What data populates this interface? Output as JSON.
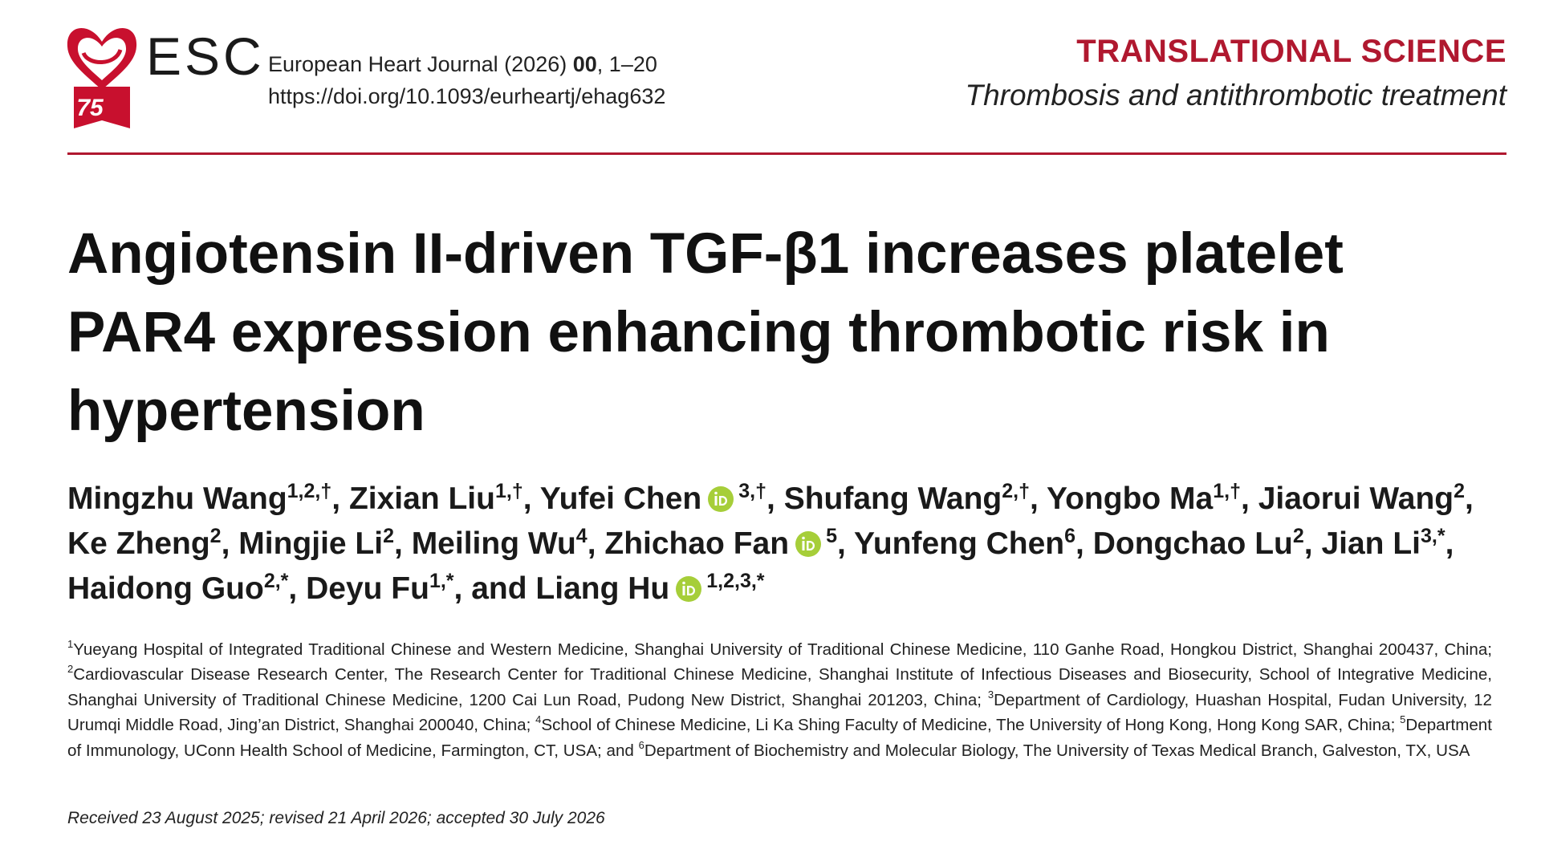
{
  "header": {
    "logo_text": "ESC",
    "logo_years": "75",
    "journal": "European Heart Journal (2026)",
    "volume": "00",
    "pages": ", 1–20",
    "doi": "https://doi.org/10.1093/eurheartj/ehag632",
    "section": "TRANSLATIONAL SCIENCE",
    "subsection": "Thrombosis and antithrombotic treatment"
  },
  "title": "Angiotensin II-driven TGF-β1 increases platelet PAR4 expression enhancing thrombotic risk in hypertension",
  "authors": [
    {
      "name": "Mingzhu Wang",
      "sup": "1,2,†",
      "sep": ","
    },
    {
      "name": "Zixian Liu",
      "sup": "1,†",
      "sep": ","
    },
    {
      "name": "Yufei Chen",
      "orcid": true,
      "sup": "3,†",
      "sep": ","
    },
    {
      "name": "Shufang Wang",
      "sup": "2,†",
      "sep": ","
    },
    {
      "name": "Yongbo Ma",
      "sup": "1,†",
      "sep": ","
    },
    {
      "name": "Jiaorui Wang",
      "sup": "2",
      "sep": ","
    },
    {
      "name": "Ke Zheng",
      "sup": "2",
      "sep": ","
    },
    {
      "name": "Mingjie Li",
      "sup": "2",
      "sep": ","
    },
    {
      "name": "Meiling Wu",
      "sup": "4",
      "sep": ","
    },
    {
      "name": "Zhichao Fan",
      "orcid": true,
      "sup": "5",
      "sep": ","
    },
    {
      "name": "Yunfeng Chen",
      "sup": "6",
      "sep": ","
    },
    {
      "name": "Dongchao Lu",
      "sup": "2",
      "sep": ","
    },
    {
      "name": "Jian Li",
      "sup": "3,*",
      "sep": ","
    },
    {
      "name": "Haidong Guo",
      "sup": "2,*",
      "sep": ","
    },
    {
      "name": "Deyu Fu",
      "sup": "1,*",
      "sep": ","
    },
    {
      "lead": "and",
      "name": "Liang Hu",
      "orcid": true,
      "sup": "1,2,3,*"
    }
  ],
  "affiliations": [
    {
      "num": "1",
      "text": "Yueyang Hospital of Integrated Traditional Chinese and Western Medicine, Shanghai University of Traditional Chinese Medicine, 110 Ganhe Road, Hongkou District, Shanghai 200437, China;"
    },
    {
      "num": "2",
      "text": "Cardiovascular Disease Research Center, The Research Center for Traditional Chinese Medicine, Shanghai Institute of Infectious Diseases and Biosecurity, School of Integrative Medicine, Shanghai University of Traditional Chinese Medicine, 1200 Cai Lun Road, Pudong New District, Shanghai 201203, China;"
    },
    {
      "num": "3",
      "text": "Department of Cardiology, Huashan Hospital, Fudan University, 12 Urumqi Middle Road, Jing’an District, Shanghai 200040, China;"
    },
    {
      "num": "4",
      "text": "School of Chinese Medicine, Li Ka Shing Faculty of Medicine, The University of Hong Kong, Hong Kong SAR, China;"
    },
    {
      "num": "5",
      "text": "Department of Immunology, UConn Health School of Medicine, Farmington, CT, USA; and"
    },
    {
      "num": "6",
      "text": "Department of Biochemistry and Molecular Biology, The University of Texas Medical Branch, Galveston, TX, USA"
    }
  ],
  "dates": "Received 23 August 2025; revised 21 April 2026; accepted 30 July 2026"
}
